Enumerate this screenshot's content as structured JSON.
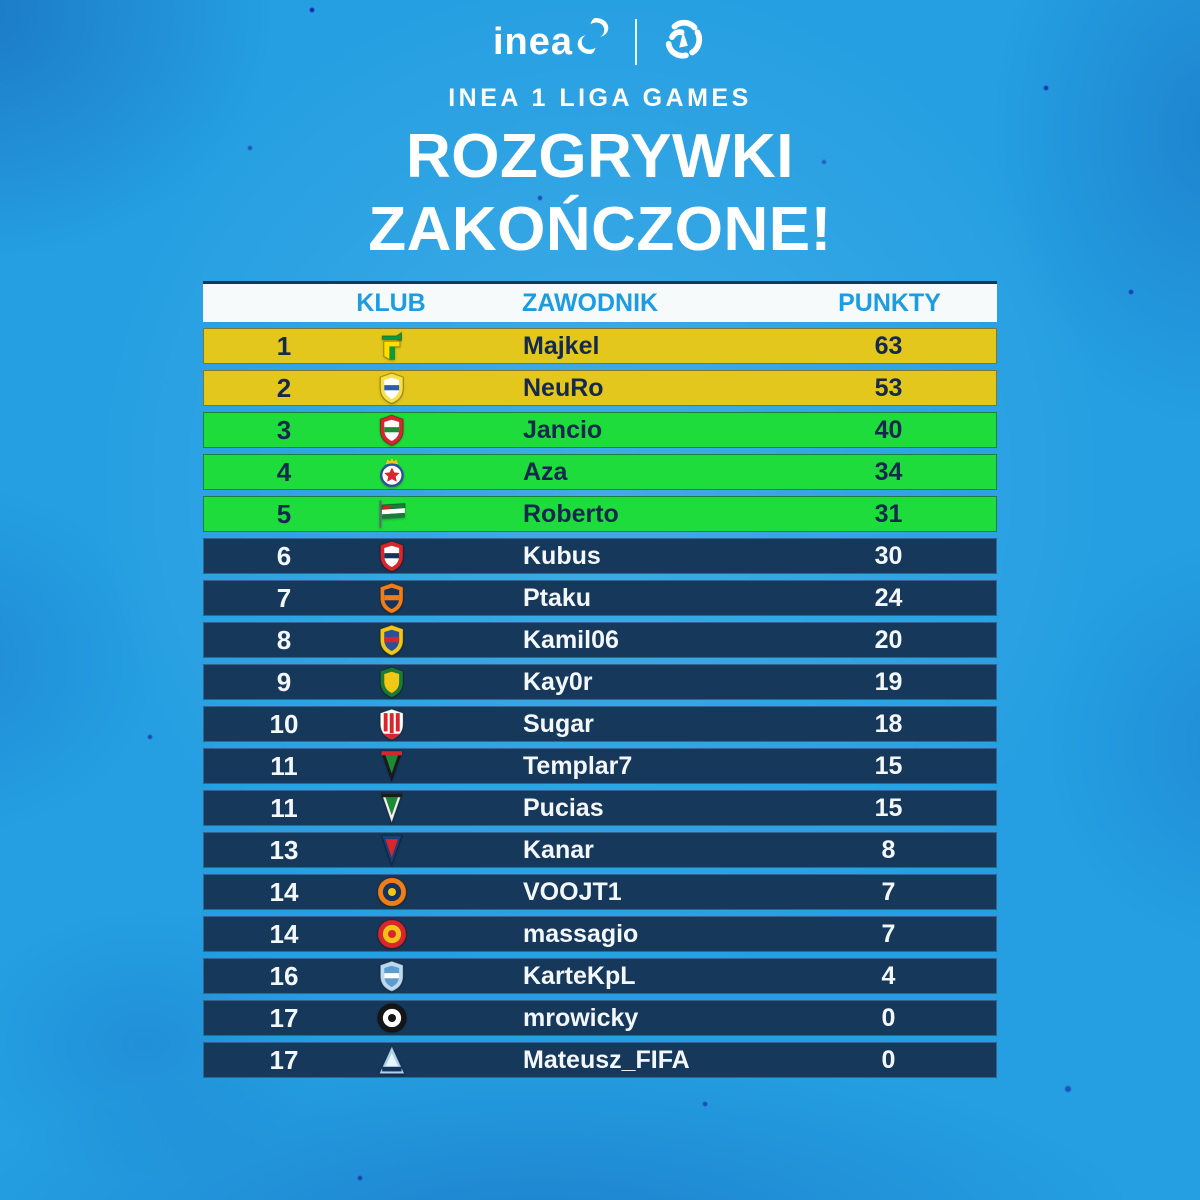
{
  "poster": {
    "background_color": "#259fe2",
    "brand": {
      "inea_wordmark": "inea",
      "subtitle": "INEA 1 LIGA GAMES"
    },
    "title_line1": "ROZGRYWKI",
    "title_line2": "ZAKOŃCZONE!"
  },
  "table": {
    "columns": [
      "KLUB",
      "ZAWODNIK",
      "PUNKTY"
    ],
    "header_background": "#f7fafb",
    "header_text_color": "#1e9ce2",
    "tier_colors": {
      "gold": "#e3c71c",
      "green": "#1edc3b",
      "navy": "#16395b"
    },
    "row_text_colors": {
      "gold": "#14294d",
      "green": "#14294d",
      "navy": "#f4f7fa"
    },
    "rows": [
      {
        "rank": 1,
        "player": "Majkel",
        "points": 63,
        "tier": "gold",
        "crest": {
          "shape": "glyph",
          "colors": [
            "#ffdf00",
            "#0c9b3c"
          ]
        }
      },
      {
        "rank": 2,
        "player": "NeuRo",
        "points": 53,
        "tier": "gold",
        "crest": {
          "shape": "shield",
          "colors": [
            "#f6e14b",
            "#ffffff",
            "#2b5cb0"
          ]
        }
      },
      {
        "rank": 3,
        "player": "Jancio",
        "points": 40,
        "tier": "green",
        "crest": {
          "shape": "shield",
          "colors": [
            "#d8262c",
            "#ffffff",
            "#1d8a35"
          ]
        }
      },
      {
        "rank": 4,
        "player": "Aza",
        "points": 34,
        "tier": "green",
        "crest": {
          "shape": "star",
          "colors": [
            "#d8262c",
            "#2b4f9e",
            "#f3c21a"
          ]
        }
      },
      {
        "rank": 5,
        "player": "Roberto",
        "points": 31,
        "tier": "green",
        "crest": {
          "shape": "flag",
          "colors": [
            "#1b7a3d",
            "#ffffff",
            "#c62828"
          ]
        }
      },
      {
        "rank": 6,
        "player": "Kubus",
        "points": 30,
        "tier": "navy",
        "crest": {
          "shape": "shield",
          "colors": [
            "#d8262c",
            "#ffffff",
            "#16335c"
          ]
        }
      },
      {
        "rank": 7,
        "player": "Ptaku",
        "points": 24,
        "tier": "navy",
        "crest": {
          "shape": "shield",
          "colors": [
            "#ef7d1a",
            "#16335c",
            "#ef7d1a"
          ]
        }
      },
      {
        "rank": 8,
        "player": "Kamil06",
        "points": 20,
        "tier": "navy",
        "crest": {
          "shape": "shield",
          "colors": [
            "#f2c818",
            "#2b4f9e",
            "#d8262c"
          ]
        }
      },
      {
        "rank": 9,
        "player": "Kay0r",
        "points": 19,
        "tier": "navy",
        "crest": {
          "shape": "shield",
          "colors": [
            "#1d7a35",
            "#f2c818"
          ]
        }
      },
      {
        "rank": 10,
        "player": "Sugar",
        "points": 18,
        "tier": "navy",
        "crest": {
          "shape": "shield-stripes",
          "colors": [
            "#ffffff",
            "#d8262c"
          ]
        }
      },
      {
        "rank": 11,
        "player": "Templar7",
        "points": 15,
        "tier": "navy",
        "crest": {
          "shape": "pennant",
          "colors": [
            "#1c1c1c",
            "#1d8a35",
            "#d8262c"
          ]
        }
      },
      {
        "rank": 11,
        "player": "Pucias",
        "points": 15,
        "tier": "navy",
        "crest": {
          "shape": "pennant",
          "colors": [
            "#f2f2f2",
            "#1d8a35",
            "#1c1c1c"
          ]
        }
      },
      {
        "rank": 13,
        "player": "Kanar",
        "points": 8,
        "tier": "navy",
        "crest": {
          "shape": "pennant",
          "colors": [
            "#1c3f7a",
            "#d8262c"
          ]
        }
      },
      {
        "rank": 14,
        "player": "VOOJT1",
        "points": 7,
        "tier": "navy",
        "crest": {
          "shape": "circle",
          "colors": [
            "#ef7d1a",
            "#16335c",
            "#f2c818"
          ]
        }
      },
      {
        "rank": 14,
        "player": "massagio",
        "points": 7,
        "tier": "navy",
        "crest": {
          "shape": "circle",
          "colors": [
            "#d8262c",
            "#f2c21a",
            "#d8262c"
          ]
        }
      },
      {
        "rank": 16,
        "player": "KarteKpL",
        "points": 4,
        "tier": "navy",
        "crest": {
          "shape": "shield",
          "colors": [
            "#bcd9f2",
            "#5e9bcf",
            "#ffffff"
          ]
        }
      },
      {
        "rank": 17,
        "player": "mrowicky",
        "points": 0,
        "tier": "navy",
        "crest": {
          "shape": "circle",
          "colors": [
            "#151515",
            "#ffffff",
            "#151515"
          ]
        }
      },
      {
        "rank": 17,
        "player": "Mateusz_FIFA",
        "points": 0,
        "tier": "navy",
        "crest": {
          "shape": "triangle",
          "colors": [
            "#a9d4ef",
            "#16335c"
          ]
        }
      }
    ]
  }
}
